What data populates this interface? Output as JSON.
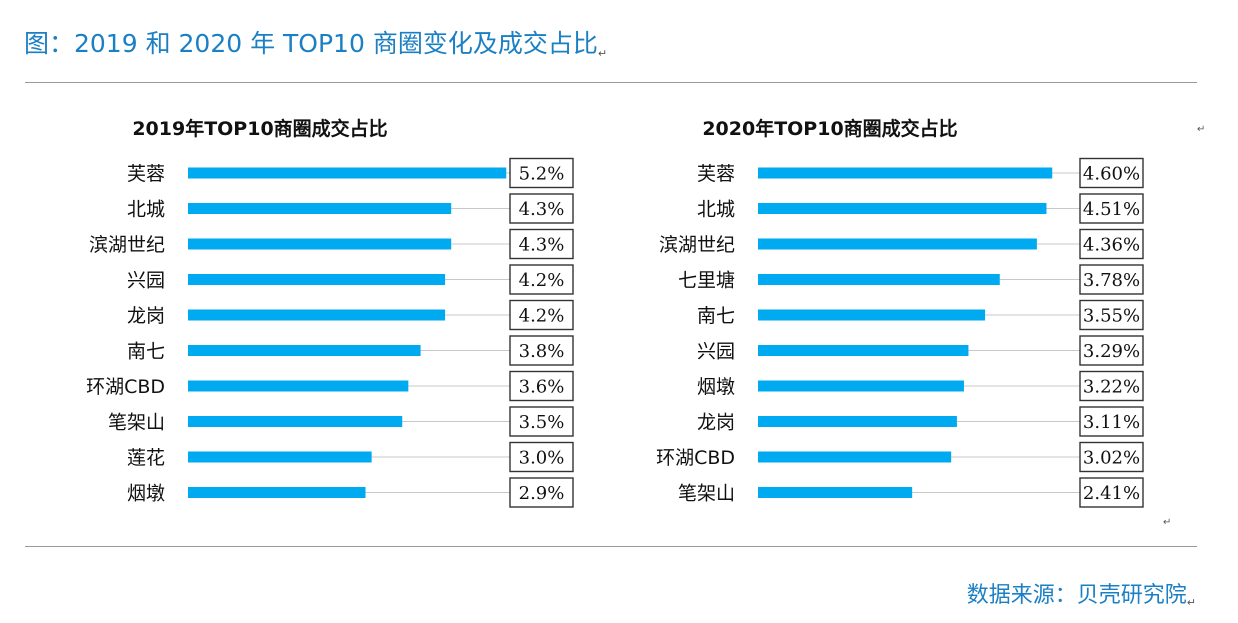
{
  "figure": {
    "title": "图：2019 和 2020 年 TOP10 商圈变化及成交占比",
    "source": "数据来源：贝壳研究院",
    "return_mark": "↵"
  },
  "colors": {
    "bar": "#00aaf0",
    "title": "#1b7fc4",
    "leader": "#c8c8c8",
    "box_border": "#333333"
  },
  "chart_data": [
    {
      "type": "bar",
      "orientation": "horizontal",
      "title": "2019年TOP10商圈成交占比",
      "categories": [
        "芙蓉",
        "北城",
        "滨湖世纪",
        "兴园",
        "龙岗",
        "南七",
        "环湖CBD",
        "笔架山",
        "莲花",
        "烟墩"
      ],
      "values": [
        5.2,
        4.3,
        4.3,
        4.2,
        4.2,
        3.8,
        3.6,
        3.5,
        3.0,
        2.9
      ],
      "labels": [
        "5.2%",
        "4.3%",
        "4.3%",
        "4.2%",
        "4.2%",
        "3.8%",
        "3.6%",
        "3.5%",
        "3.0%",
        "2.9%"
      ],
      "unit": "%",
      "xlim": [
        0,
        5.8
      ]
    },
    {
      "type": "bar",
      "orientation": "horizontal",
      "title": "2020年TOP10商圈成交占比",
      "categories": [
        "芙蓉",
        "北城",
        "滨湖世纪",
        "七里塘",
        "南七",
        "兴园",
        "烟墩",
        "龙岗",
        "环湖CBD",
        "笔架山"
      ],
      "values": [
        4.6,
        4.51,
        4.36,
        3.78,
        3.55,
        3.29,
        3.22,
        3.11,
        3.02,
        2.41
      ],
      "labels": [
        "4.60%",
        "4.51%",
        "4.36%",
        "3.78%",
        "3.55%",
        "3.29%",
        "3.22%",
        "3.11%",
        "3.02%",
        "2.41%"
      ],
      "unit": "%",
      "xlim": [
        0,
        5.55
      ]
    }
  ]
}
